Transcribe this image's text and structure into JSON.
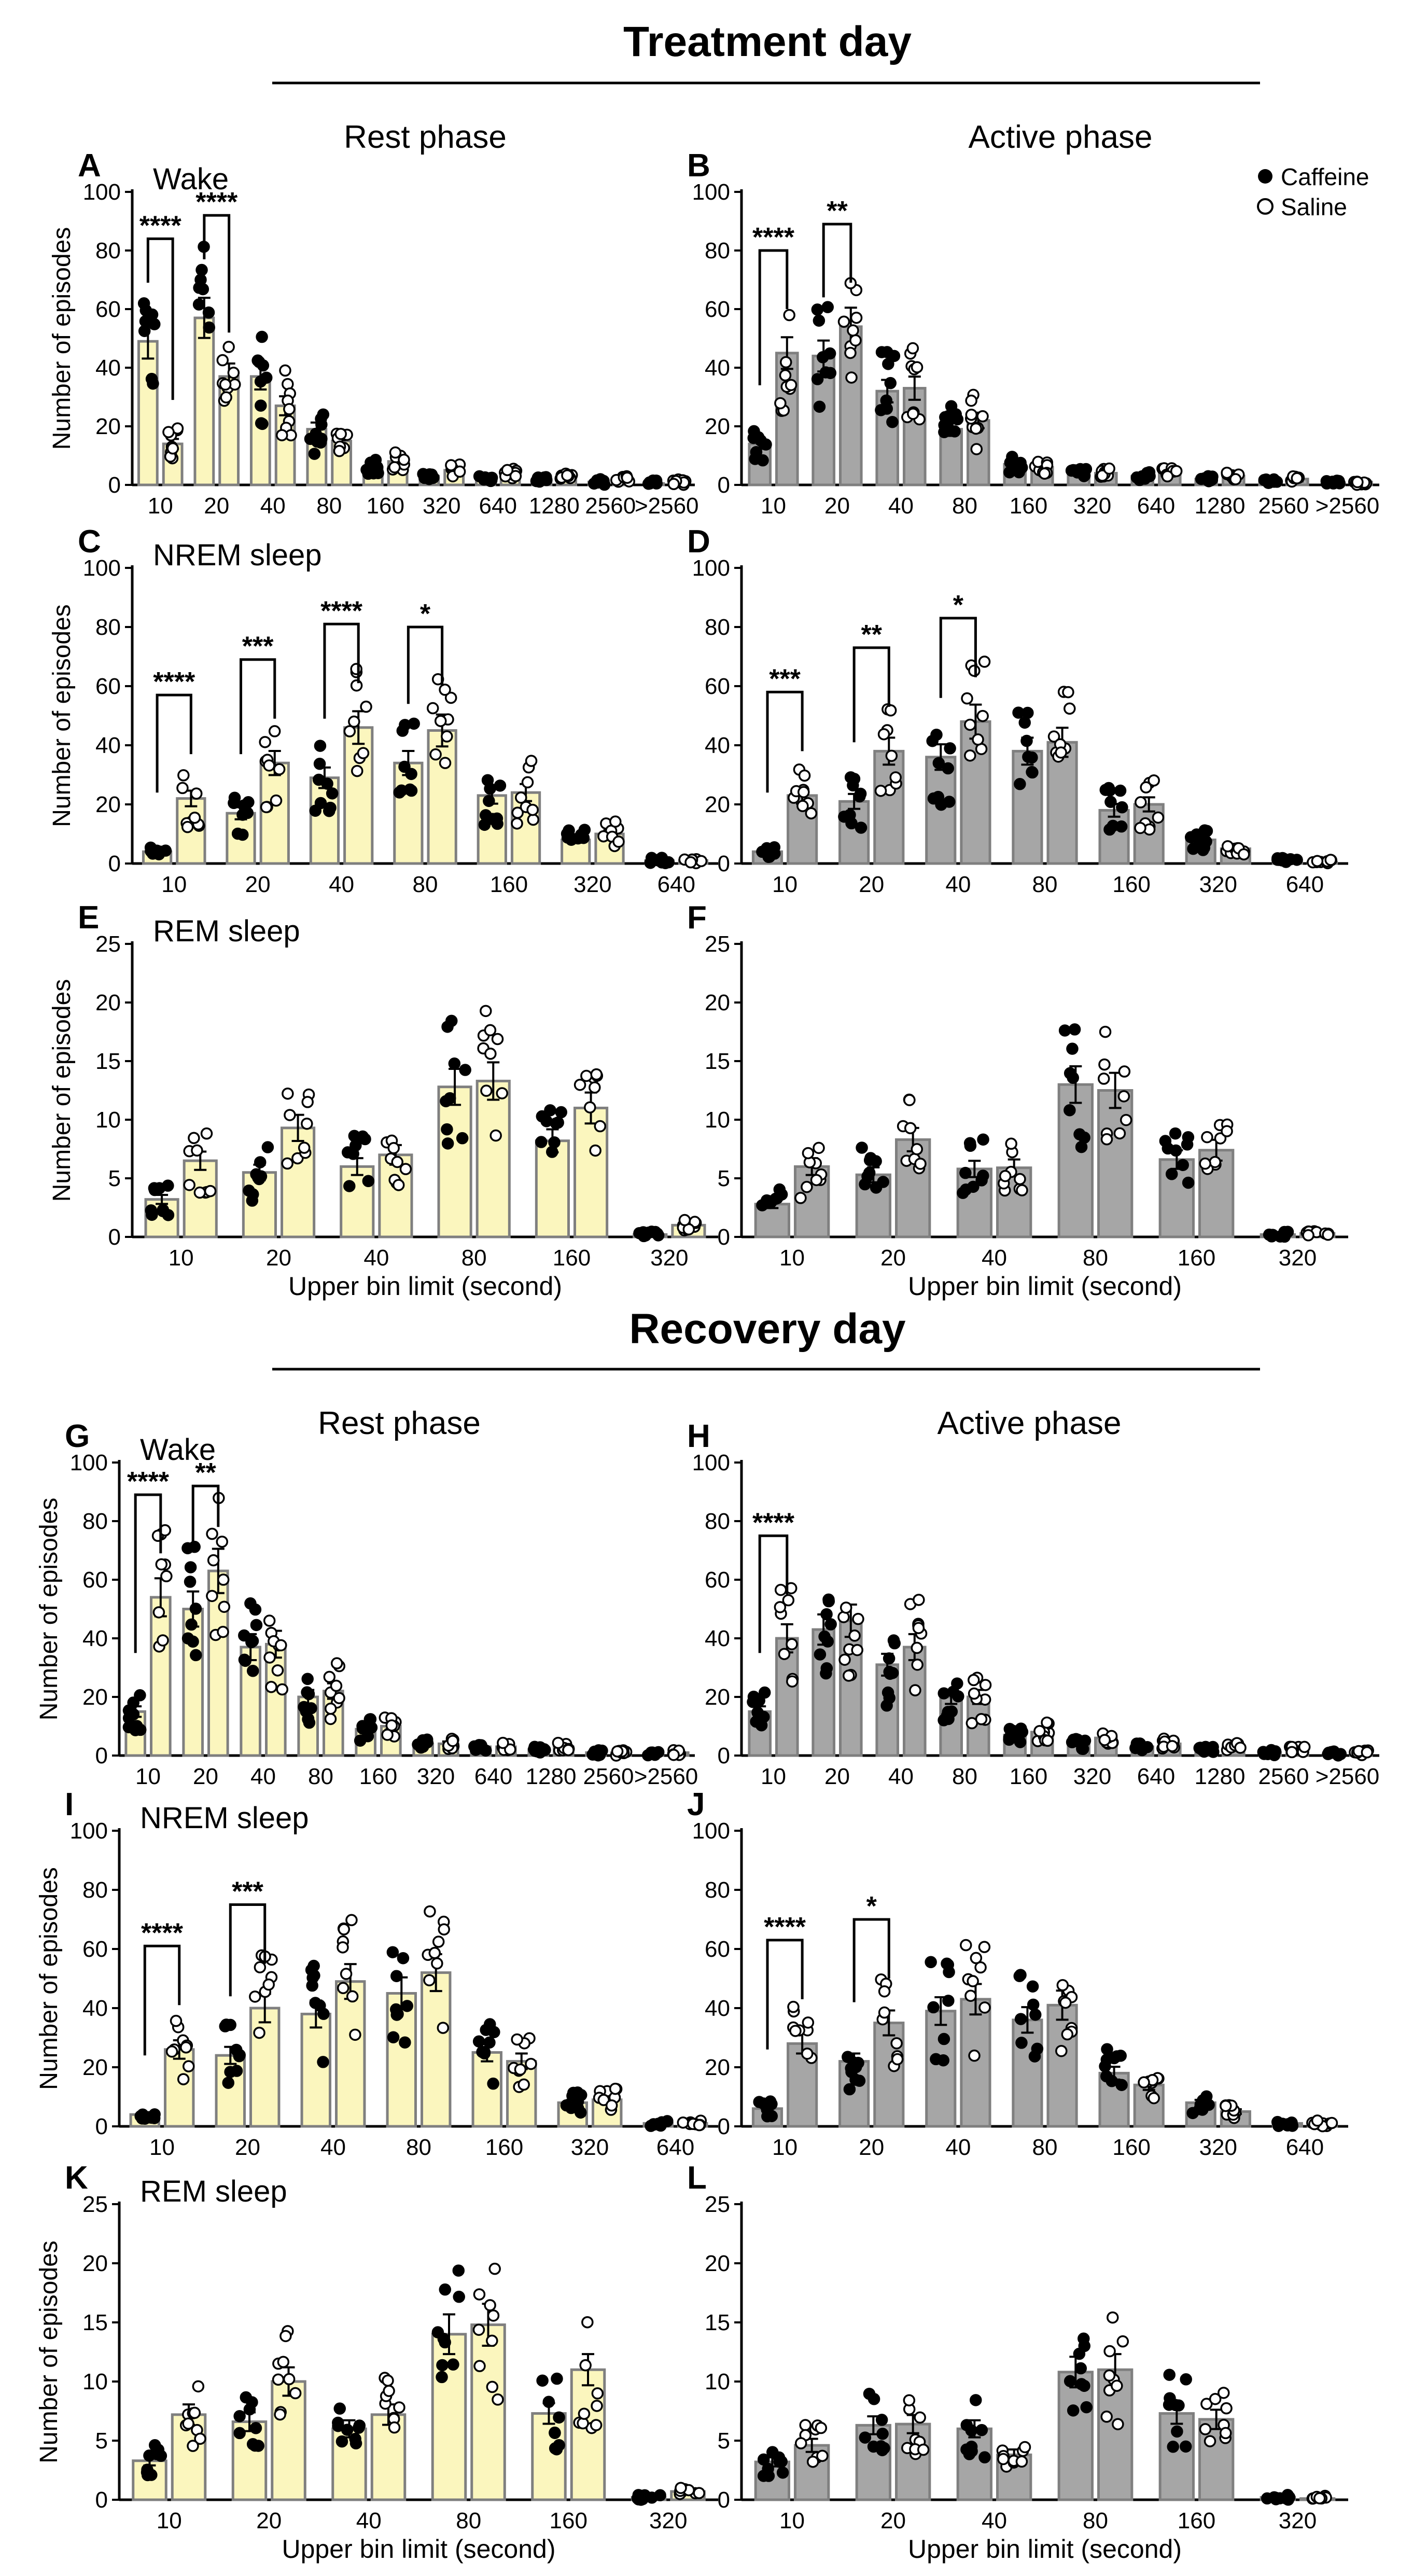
{
  "sections": [
    {
      "title": "Treatment day"
    },
    {
      "title": "Recovery day"
    }
  ],
  "phases": [
    "Rest phase",
    "Active phase",
    "Rest phase",
    "Active phase"
  ],
  "legend": {
    "items": [
      {
        "label": "Caffeine",
        "marker": "filled-circle"
      },
      {
        "label": "Saline",
        "marker": "open-circle"
      }
    ]
  },
  "colors": {
    "rest_bar": "#fbf6be",
    "active_bar": "#a6a6a6",
    "bar_edge": "#7f7f7f",
    "ink": "#000000"
  },
  "chart_data": [
    {
      "panel": "A",
      "type": "bar",
      "title": "Wake",
      "section": "Treatment day",
      "phase": "Rest phase",
      "ylabel": "Number of episodes",
      "xlabel": "",
      "ylim": [
        0,
        100
      ],
      "yticks": [
        0,
        20,
        40,
        60,
        80,
        100
      ],
      "categories": [
        "10",
        "20",
        "40",
        "80",
        "160",
        "320",
        "640",
        "1280",
        "2560",
        ">2560"
      ],
      "series": [
        {
          "name": "Caffeine",
          "values": [
            49,
            57,
            37,
            19,
            6,
            3,
            2,
            2,
            1,
            0.5
          ]
        },
        {
          "name": "Saline",
          "values": [
            14,
            37,
            27,
            15,
            8,
            5,
            4,
            3,
            2,
            1
          ]
        }
      ],
      "annotations": [
        {
          "pair": 0,
          "label": "****"
        },
        {
          "pair": 1,
          "label": "****"
        }
      ]
    },
    {
      "panel": "B",
      "type": "bar",
      "title": "",
      "section": "Treatment day",
      "phase": "Active phase",
      "ylabel": "",
      "xlabel": "",
      "ylim": [
        0,
        100
      ],
      "yticks": [
        0,
        20,
        40,
        60,
        80,
        100
      ],
      "categories": [
        "10",
        "20",
        "40",
        "80",
        "160",
        "320",
        "640",
        "1280",
        "2560",
        ">2560"
      ],
      "series": [
        {
          "name": "Caffeine",
          "values": [
            14,
            44,
            32,
            19,
            7,
            4,
            3,
            2,
            1,
            0.5
          ]
        },
        {
          "name": "Saline",
          "values": [
            45,
            54,
            33,
            22,
            6,
            4,
            4,
            3,
            2,
            1
          ]
        }
      ],
      "annotations": [
        {
          "pair": 0,
          "label": "****"
        },
        {
          "pair": 1,
          "label": "**"
        }
      ]
    },
    {
      "panel": "C",
      "type": "bar",
      "title": "NREM sleep",
      "section": "Treatment day",
      "phase": "Rest phase",
      "ylabel": "Number of episodes",
      "xlabel": "",
      "ylim": [
        0,
        100
      ],
      "yticks": [
        0,
        20,
        40,
        60,
        80,
        100
      ],
      "categories": [
        "10",
        "20",
        "40",
        "80",
        "160",
        "320",
        "640"
      ],
      "series": [
        {
          "name": "Caffeine",
          "values": [
            4,
            17,
            29,
            34,
            23,
            8,
            1
          ]
        },
        {
          "name": "Saline",
          "values": [
            22,
            34,
            46,
            45,
            24,
            10,
            1
          ]
        }
      ],
      "annotations": [
        {
          "pair": 0,
          "label": "****"
        },
        {
          "pair": 1,
          "label": "***"
        },
        {
          "pair": 2,
          "label": "****"
        },
        {
          "pair": 3,
          "label": "*"
        }
      ]
    },
    {
      "panel": "D",
      "type": "bar",
      "title": "",
      "section": "Treatment day",
      "phase": "Active phase",
      "ylabel": "",
      "xlabel": "",
      "ylim": [
        0,
        100
      ],
      "yticks": [
        0,
        20,
        40,
        60,
        80,
        100
      ],
      "categories": [
        "10",
        "20",
        "40",
        "80",
        "160",
        "320",
        "640"
      ],
      "series": [
        {
          "name": "Caffeine",
          "values": [
            4,
            21,
            36,
            38,
            18,
            8,
            1
          ]
        },
        {
          "name": "Saline",
          "values": [
            23,
            38,
            48,
            41,
            20,
            5,
            0.5
          ]
        }
      ],
      "annotations": [
        {
          "pair": 0,
          "label": "***"
        },
        {
          "pair": 1,
          "label": "**"
        },
        {
          "pair": 2,
          "label": "*"
        }
      ]
    },
    {
      "panel": "E",
      "type": "bar",
      "title": "REM sleep",
      "section": "Treatment day",
      "phase": "Rest phase",
      "ylabel": "Number of episodes",
      "xlabel": "Upper bin limit (second)",
      "ylim": [
        0,
        25
      ],
      "yticks": [
        0,
        5,
        10,
        15,
        20,
        25
      ],
      "categories": [
        "10",
        "20",
        "40",
        "80",
        "160",
        "320"
      ],
      "series": [
        {
          "name": "Caffeine",
          "values": [
            3.2,
            5.5,
            6,
            12.8,
            8.2,
            0.2
          ]
        },
        {
          "name": "Saline",
          "values": [
            6.5,
            9.3,
            7,
            13.3,
            11,
            1
          ]
        }
      ],
      "annotations": []
    },
    {
      "panel": "F",
      "type": "bar",
      "title": "",
      "section": "Treatment day",
      "phase": "Active phase",
      "ylabel": "",
      "xlabel": "Upper bin limit (second)",
      "ylim": [
        0,
        25
      ],
      "yticks": [
        0,
        5,
        10,
        15,
        20,
        25
      ],
      "categories": [
        "10",
        "20",
        "40",
        "80",
        "160",
        "320"
      ],
      "series": [
        {
          "name": "Caffeine",
          "values": [
            2.8,
            5.3,
            5.8,
            13,
            6.6,
            0.2
          ]
        },
        {
          "name": "Saline",
          "values": [
            6,
            8.3,
            5.9,
            12.5,
            7.4,
            0.3
          ]
        }
      ],
      "annotations": []
    },
    {
      "panel": "G",
      "type": "bar",
      "title": "Wake",
      "section": "Recovery day",
      "phase": "Rest phase",
      "ylabel": "Number of episodes",
      "xlabel": "",
      "ylim": [
        0,
        100
      ],
      "yticks": [
        0,
        20,
        40,
        60,
        80,
        100
      ],
      "categories": [
        "10",
        "20",
        "40",
        "80",
        "160",
        "320",
        "640",
        "1280",
        "2560",
        ">2560"
      ],
      "series": [
        {
          "name": "Caffeine",
          "values": [
            15,
            50,
            37,
            20,
            9,
            4,
            3,
            2,
            1,
            0.5
          ]
        },
        {
          "name": "Saline",
          "values": [
            54,
            63,
            38,
            22,
            10,
            4,
            3,
            3,
            1,
            1
          ]
        }
      ],
      "annotations": [
        {
          "pair": 0,
          "label": "****"
        },
        {
          "pair": 1,
          "label": "**"
        }
      ]
    },
    {
      "panel": "H",
      "type": "bar",
      "title": "",
      "section": "Recovery day",
      "phase": "Active phase",
      "ylabel": "",
      "xlabel": "",
      "ylim": [
        0,
        100
      ],
      "yticks": [
        0,
        20,
        40,
        60,
        80,
        100
      ],
      "categories": [
        "10",
        "20",
        "40",
        "80",
        "160",
        "320",
        "640",
        "1280",
        "2560",
        ">2560"
      ],
      "series": [
        {
          "name": "Caffeine",
          "values": [
            15,
            43,
            31,
            20,
            7,
            4,
            3,
            2,
            1,
            0.5
          ]
        },
        {
          "name": "Saline",
          "values": [
            40,
            46,
            37,
            20,
            8,
            6,
            4,
            3,
            2,
            1
          ]
        }
      ],
      "annotations": [
        {
          "pair": 0,
          "label": "****"
        }
      ]
    },
    {
      "panel": "I",
      "type": "bar",
      "title": "NREM sleep",
      "section": "Recovery day",
      "phase": "Rest phase",
      "ylabel": "Number of episodes",
      "xlabel": "",
      "ylim": [
        0,
        100
      ],
      "yticks": [
        0,
        20,
        40,
        60,
        80,
        100
      ],
      "categories": [
        "10",
        "20",
        "40",
        "80",
        "160",
        "320",
        "640"
      ],
      "series": [
        {
          "name": "Caffeine",
          "values": [
            4,
            24,
            38,
            45,
            25,
            8,
            1
          ]
        },
        {
          "name": "Saline",
          "values": [
            26,
            40,
            49,
            52,
            22,
            9,
            1
          ]
        }
      ],
      "annotations": [
        {
          "pair": 0,
          "label": "****"
        },
        {
          "pair": 1,
          "label": "***"
        }
      ]
    },
    {
      "panel": "J",
      "type": "bar",
      "title": "",
      "section": "Recovery day",
      "phase": "Active phase",
      "ylabel": "",
      "xlabel": "",
      "ylim": [
        0,
        100
      ],
      "yticks": [
        0,
        20,
        40,
        60,
        80,
        100
      ],
      "categories": [
        "10",
        "20",
        "40",
        "80",
        "160",
        "320",
        "640"
      ],
      "series": [
        {
          "name": "Caffeine",
          "values": [
            6,
            22,
            39,
            36,
            18,
            8,
            1
          ]
        },
        {
          "name": "Saline",
          "values": [
            28,
            35,
            43,
            41,
            14,
            5,
            1
          ]
        }
      ],
      "annotations": [
        {
          "pair": 0,
          "label": "****"
        },
        {
          "pair": 1,
          "label": "*"
        }
      ]
    },
    {
      "panel": "K",
      "type": "bar",
      "title": "REM sleep",
      "section": "Recovery day",
      "phase": "Rest phase",
      "ylabel": "Number of episodes",
      "xlabel": "Upper bin limit (second)",
      "ylim": [
        0,
        25
      ],
      "yticks": [
        0,
        5,
        10,
        15,
        20,
        25
      ],
      "categories": [
        "10",
        "20",
        "40",
        "80",
        "160",
        "320"
      ],
      "series": [
        {
          "name": "Caffeine",
          "values": [
            3.3,
            6.6,
            6,
            14,
            7.3,
            0.2
          ]
        },
        {
          "name": "Saline",
          "values": [
            7.2,
            10,
            7.2,
            14.8,
            11,
            0.7
          ]
        }
      ],
      "annotations": []
    },
    {
      "panel": "L",
      "type": "bar",
      "title": "",
      "section": "Recovery day",
      "phase": "Active phase",
      "ylabel": "",
      "xlabel": "Upper bin limit (second)",
      "ylim": [
        0,
        25
      ],
      "yticks": [
        0,
        5,
        10,
        15,
        20,
        25
      ],
      "categories": [
        "10",
        "20",
        "40",
        "80",
        "160",
        "320"
      ],
      "series": [
        {
          "name": "Caffeine",
          "values": [
            3.2,
            6.3,
            6,
            10.8,
            7.3,
            0.2
          ]
        },
        {
          "name": "Saline",
          "values": [
            4.6,
            6.4,
            3.8,
            11,
            6.8,
            0.1
          ]
        }
      ],
      "annotations": []
    }
  ]
}
